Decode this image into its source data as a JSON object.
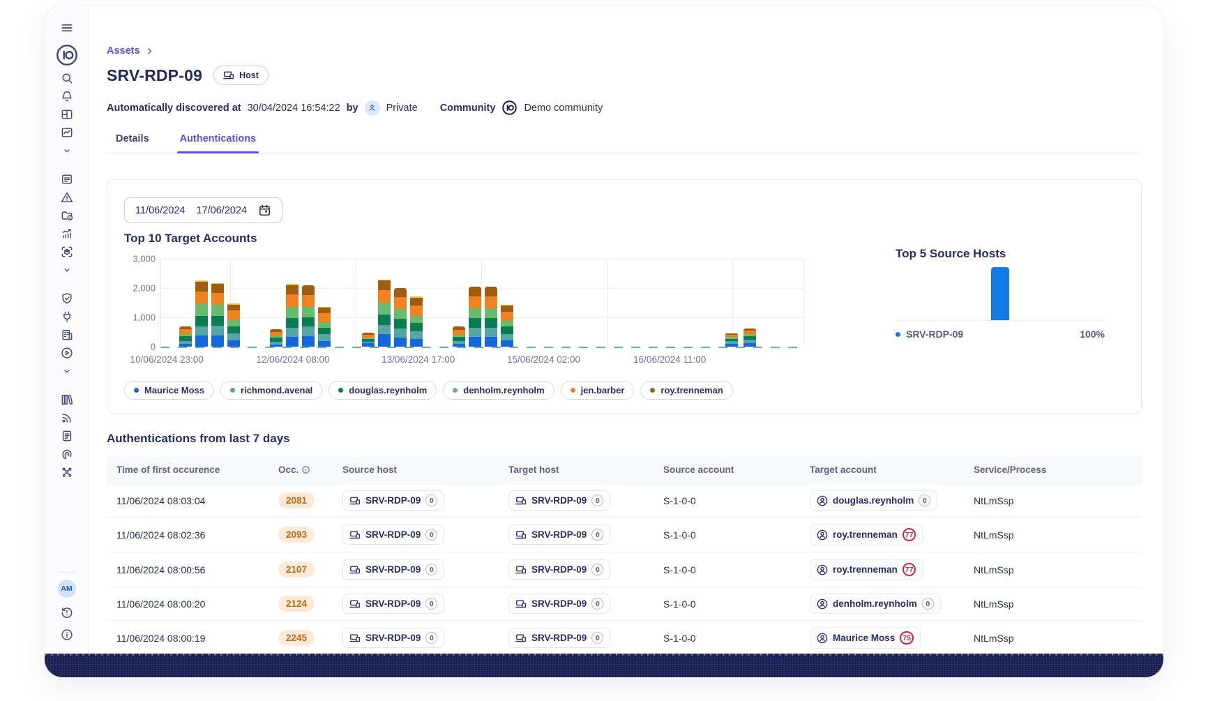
{
  "app": {
    "brand": "IO",
    "avatar_initials": "AM"
  },
  "sidebar": {
    "icons": [
      "menu",
      "brand-logo",
      "search",
      "notifications",
      "dashboard",
      "activity",
      "chevron-down",
      "news",
      "alerts",
      "folder-info",
      "statistics",
      "scan",
      "chevron-down",
      "shield",
      "integrations",
      "organization",
      "tutorials",
      "chevron-down",
      "library",
      "feed",
      "reports",
      "trace",
      "topology",
      "user-avatar",
      "history",
      "about"
    ]
  },
  "breadcrumb": {
    "label": "Assets"
  },
  "header": {
    "title": "SRV-RDP-09",
    "type_badge": "Host",
    "meta": {
      "discovered_label": "Automatically discovered at",
      "discovered_at": "30/04/2024 16:54:22",
      "by_label": "by",
      "owner": "Private",
      "community_label": "Community",
      "community": "Demo community"
    }
  },
  "tabs": [
    {
      "label": "Details",
      "active": false
    },
    {
      "label": "Authentications",
      "active": true
    }
  ],
  "panel": {
    "date_range": {
      "start": "11/06/2024",
      "end": "17/06/2024"
    }
  },
  "chart_data": [
    {
      "type": "bar",
      "stacked": true,
      "title": "Top 10 Target Accounts",
      "ylim": [
        0,
        3000
      ],
      "ytick_labels": [
        "3,000",
        "2,000",
        "1,000",
        "0"
      ],
      "xtick_labels": [
        "10/06/2024 23:00",
        "12/06/2024 08:00",
        "13/06/2024 17:00",
        "15/06/2024 02:00",
        "16/06/2024 11:00"
      ],
      "series": [
        "Maurice Moss",
        "richmond.avenal",
        "douglas.reynholm",
        "denholm.reynholm",
        "jen.barber",
        "roy.trenneman"
      ],
      "colors": [
        "#1567dd",
        "#55a7a7",
        "#0c7d52",
        "#66bd6d",
        "#ef8320",
        "#a05c10"
      ],
      "cap_color": "#f0c33c",
      "bars": [
        {
          "x": 2.9,
          "v": [
            90,
            110,
            150,
            80,
            160,
            110
          ],
          "cap": 0
        },
        {
          "x": 5.4,
          "v": [
            370,
            330,
            340,
            420,
            430,
            330
          ],
          "cap": 35
        },
        {
          "x": 7.9,
          "v": [
            380,
            340,
            330,
            380,
            400,
            310
          ],
          "cap": 35
        },
        {
          "x": 10.4,
          "v": [
            220,
            230,
            250,
            210,
            330,
            200
          ],
          "cap": 35
        },
        {
          "x": 17.0,
          "v": [
            80,
            90,
            130,
            70,
            140,
            90
          ],
          "cap": 0
        },
        {
          "x": 19.5,
          "v": [
            330,
            320,
            330,
            380,
            420,
            320
          ],
          "cap": 35
        },
        {
          "x": 22.0,
          "v": [
            350,
            330,
            320,
            360,
            400,
            330
          ],
          "cap": 0
        },
        {
          "x": 24.5,
          "v": [
            200,
            220,
            230,
            190,
            300,
            190
          ],
          "cap": 35
        },
        {
          "x": 31.3,
          "v": [
            110,
            60,
            90,
            50,
            100,
            70
          ],
          "cap": 0
        },
        {
          "x": 33.8,
          "v": [
            420,
            330,
            350,
            390,
            430,
            340
          ],
          "cap": 35
        },
        {
          "x": 36.3,
          "v": [
            320,
            310,
            320,
            340,
            390,
            330
          ],
          "cap": 0
        },
        {
          "x": 38.8,
          "v": [
            260,
            270,
            280,
            240,
            360,
            260
          ],
          "cap": 35
        },
        {
          "x": 45.4,
          "v": [
            90,
            100,
            140,
            80,
            160,
            110
          ],
          "cap": 0
        },
        {
          "x": 47.9,
          "v": [
            330,
            320,
            320,
            350,
            390,
            330
          ],
          "cap": 0
        },
        {
          "x": 50.4,
          "v": [
            330,
            320,
            320,
            350,
            400,
            320
          ],
          "cap": 0
        },
        {
          "x": 52.9,
          "v": [
            210,
            230,
            240,
            200,
            320,
            200
          ],
          "cap": 35
        },
        {
          "x": 87.9,
          "v": [
            90,
            90,
            90,
            60,
            70,
            50
          ],
          "cap": 0
        },
        {
          "x": 90.7,
          "v": [
            110,
            120,
            120,
            90,
            100,
            80
          ],
          "cap": 0
        }
      ]
    },
    {
      "type": "bar",
      "title": "Top 5 Source Hosts",
      "categories": [
        "SRV-RDP-09"
      ],
      "values": [
        100
      ],
      "unit": "%",
      "color": "#127be8",
      "legend_value": "100%"
    }
  ],
  "table": {
    "title": "Authentications from last 7 days",
    "columns": [
      "Time of first occurence",
      "Occ.",
      "Source host",
      "Target host",
      "Source account",
      "Target account",
      "Service/Process"
    ],
    "rows": [
      {
        "time": "11/06/2024 08:03:04",
        "occ": "2081",
        "source_host": {
          "name": "SRV-RDP-09",
          "badge": "0"
        },
        "target_host": {
          "name": "SRV-RDP-09",
          "badge": "0"
        },
        "source_account": "S-1-0-0",
        "target_account": {
          "name": "douglas.reynholm",
          "badge": "0",
          "alert": false
        },
        "service": "NtLmSsp"
      },
      {
        "time": "11/06/2024 08:02:36",
        "occ": "2093",
        "source_host": {
          "name": "SRV-RDP-09",
          "badge": "0"
        },
        "target_host": {
          "name": "SRV-RDP-09",
          "badge": "0"
        },
        "source_account": "S-1-0-0",
        "target_account": {
          "name": "roy.trenneman",
          "badge": "77",
          "alert": true
        },
        "service": "NtLmSsp"
      },
      {
        "time": "11/06/2024 08:00:56",
        "occ": "2107",
        "source_host": {
          "name": "SRV-RDP-09",
          "badge": "0"
        },
        "target_host": {
          "name": "SRV-RDP-09",
          "badge": "0"
        },
        "source_account": "S-1-0-0",
        "target_account": {
          "name": "roy.trenneman",
          "badge": "77",
          "alert": true
        },
        "service": "NtLmSsp"
      },
      {
        "time": "11/06/2024 08:00:20",
        "occ": "2124",
        "source_host": {
          "name": "SRV-RDP-09",
          "badge": "0"
        },
        "target_host": {
          "name": "SRV-RDP-09",
          "badge": "0"
        },
        "source_account": "S-1-0-0",
        "target_account": {
          "name": "denholm.reynholm",
          "badge": "0",
          "alert": false
        },
        "service": "NtLmSsp"
      },
      {
        "time": "11/06/2024 08:00:19",
        "occ": "2245",
        "source_host": {
          "name": "SRV-RDP-09",
          "badge": "0"
        },
        "target_host": {
          "name": "SRV-RDP-09",
          "badge": "0"
        },
        "source_account": "S-1-0-0",
        "target_account": {
          "name": "Maurice Moss",
          "badge": "75",
          "alert": true
        },
        "service": "NtLmSsp"
      }
    ]
  }
}
